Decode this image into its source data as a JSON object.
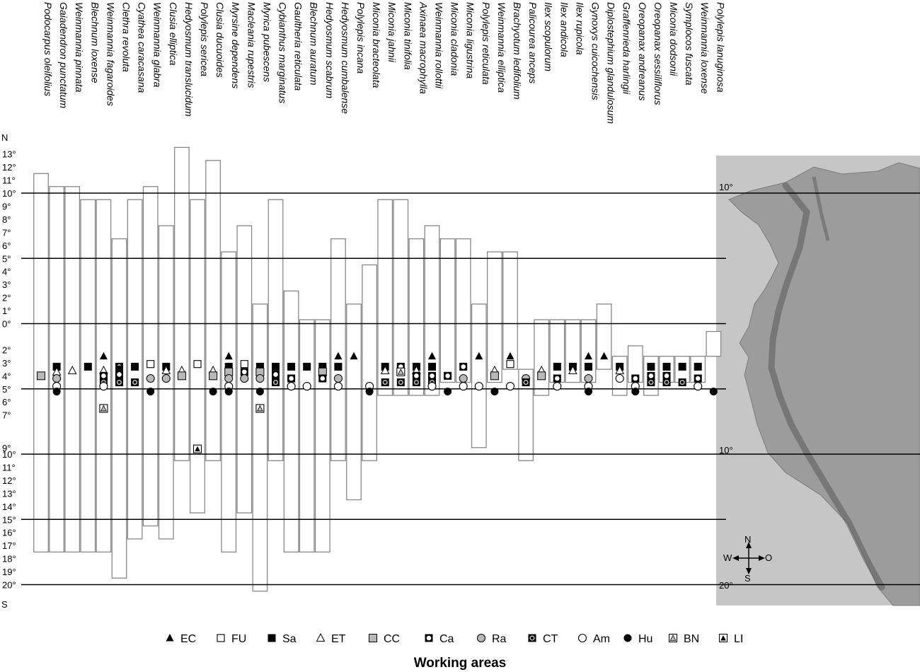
{
  "chart_data": {
    "type": "range-bar",
    "xlabel": "Working areas",
    "ylabel_top": "N",
    "ylabel_bottom": "S",
    "y_ticks_north": [
      "13°",
      "12°",
      "11°",
      "10°",
      "9°",
      "8°",
      "7°",
      "6°",
      "5°",
      "4°",
      "3°",
      "2°",
      "1°",
      "0°"
    ],
    "y_ticks_south": [
      "2°",
      "3°",
      "4°",
      "5°",
      "6°",
      "7°",
      "9°",
      "10°",
      "11°",
      "12°",
      "13°",
      "14°",
      "15°",
      "16°",
      "17°",
      "18°",
      "19°",
      "20°"
    ],
    "reference_lines": [
      10,
      5,
      0,
      -5,
      -10,
      -15,
      -20
    ],
    "ylim": [
      -20.7,
      13.3
    ],
    "species": [
      {
        "name": "Podocarpus oleifolius",
        "range": [
          -17.5,
          11.5
        ],
        "areas": [
          {
            "code": "CC",
            "lat": -4
          }
        ]
      },
      {
        "name": "Gaiadendron punctatum",
        "range": [
          -17.5,
          10.5
        ],
        "areas": [
          {
            "code": "Sa",
            "lat": -3.3
          },
          {
            "code": "ET",
            "lat": -3.7
          },
          {
            "code": "Ra",
            "lat": -4.2
          },
          {
            "code": "Am",
            "lat": -4.8
          },
          {
            "code": "Hu",
            "lat": -5.2
          }
        ]
      },
      {
        "name": "Weinmannia pinnata",
        "range": [
          -17.5,
          10.5
        ],
        "areas": [
          {
            "code": "ET",
            "lat": -3.6
          }
        ]
      },
      {
        "name": "Blechnum loxense",
        "range": [
          -17.5,
          9.5
        ],
        "areas": [
          {
            "code": "Sa",
            "lat": -3.3
          }
        ]
      },
      {
        "name": "Weinmannia fagaroides",
        "range": [
          -17.5,
          9.5
        ],
        "areas": [
          {
            "code": "EC",
            "lat": -2.5
          },
          {
            "code": "ET",
            "lat": -3.6
          },
          {
            "code": "Ca",
            "lat": -4
          },
          {
            "code": "CT",
            "lat": -4.5
          },
          {
            "code": "Am",
            "lat": -4.8
          },
          {
            "code": "BN",
            "lat": -6.5
          }
        ]
      },
      {
        "name": "Clethra revoluta",
        "range": [
          -19.5,
          6.5
        ],
        "areas": [
          {
            "code": "Ca",
            "lat": -3.3
          },
          {
            "code": "Sa",
            "lat": -3.5
          },
          {
            "code": "Ca",
            "lat": -3.9
          },
          {
            "code": "CT",
            "lat": -4.5
          }
        ]
      },
      {
        "name": "Cyathea caracasana",
        "range": [
          -16.5,
          9.5
        ],
        "areas": [
          {
            "code": "Sa",
            "lat": -3.3
          },
          {
            "code": "CT",
            "lat": -4.5
          }
        ]
      },
      {
        "name": "Weinmannia glabra",
        "range": [
          -15.5,
          10.5
        ],
        "areas": [
          {
            "code": "FU",
            "lat": -3.1
          },
          {
            "code": "Ra",
            "lat": -4.2
          },
          {
            "code": "Hu",
            "lat": -5.2
          }
        ]
      },
      {
        "name": "Clusia elliptica",
        "range": [
          -16.5,
          7.5
        ],
        "areas": [
          {
            "code": "Sa",
            "lat": -3.3
          },
          {
            "code": "ET",
            "lat": -3.6
          },
          {
            "code": "Ra",
            "lat": -4.2
          }
        ]
      },
      {
        "name": "Hedyosmum translucidum",
        "range": [
          -10.5,
          13.5
        ],
        "areas": [
          {
            "code": "ET",
            "lat": -3.6
          },
          {
            "code": "CC",
            "lat": -4
          }
        ]
      },
      {
        "name": "Polylepis sericea",
        "range": [
          -14.5,
          9.5
        ],
        "areas": [
          {
            "code": "FU",
            "lat": -3.1
          },
          {
            "code": "LI",
            "lat": -9.6
          }
        ]
      },
      {
        "name": "Clusia ducuoides",
        "range": [
          -10.5,
          12.5
        ],
        "areas": [
          {
            "code": "ET",
            "lat": -3.6
          },
          {
            "code": "CC",
            "lat": -4
          },
          {
            "code": "Hu",
            "lat": -5.2
          }
        ]
      },
      {
        "name": "Myrsine dependens",
        "range": [
          -17.5,
          5.5
        ],
        "areas": [
          {
            "code": "EC",
            "lat": -2.5
          },
          {
            "code": "Sa",
            "lat": -3.3
          },
          {
            "code": "CC",
            "lat": -3.7
          },
          {
            "code": "Ra",
            "lat": -4.2
          },
          {
            "code": "Am",
            "lat": -4.8
          },
          {
            "code": "Hu",
            "lat": -5.2
          }
        ]
      },
      {
        "name": "Macleania rupestris",
        "range": [
          -14.5,
          7.5
        ],
        "areas": [
          {
            "code": "FU",
            "lat": -3.1
          },
          {
            "code": "Ca",
            "lat": -3.7
          },
          {
            "code": "Ra",
            "lat": -4.2
          }
        ]
      },
      {
        "name": "Myrica pubescens",
        "range": [
          -20.5,
          1.5
        ],
        "areas": [
          {
            "code": "Sa",
            "lat": -3.3
          },
          {
            "code": "CC",
            "lat": -3.7
          },
          {
            "code": "Ra",
            "lat": -4.2
          },
          {
            "code": "Hu",
            "lat": -5.2
          },
          {
            "code": "BN",
            "lat": -6.5
          }
        ]
      },
      {
        "name": "Cybianthus marginatus",
        "range": [
          -10.5,
          9.5
        ],
        "areas": [
          {
            "code": "Sa",
            "lat": -3.3
          },
          {
            "code": "Ca",
            "lat": -3.9
          },
          {
            "code": "CT",
            "lat": -4.5
          }
        ]
      },
      {
        "name": "Gaultheria reticulata",
        "range": [
          -17.5,
          2.5
        ],
        "areas": [
          {
            "code": "Sa",
            "lat": -3.3
          },
          {
            "code": "Ca",
            "lat": -4.2
          },
          {
            "code": "Am",
            "lat": -4.8
          }
        ]
      },
      {
        "name": "Blechnum auratum",
        "range": [
          -17.5,
          0.3
        ],
        "areas": [
          {
            "code": "Sa",
            "lat": -3.3
          },
          {
            "code": "Am",
            "lat": -4.8
          }
        ]
      },
      {
        "name": "Hedyosmum scabrum",
        "range": [
          -17.5,
          0.3
        ],
        "areas": [
          {
            "code": "Sa",
            "lat": -3.3
          },
          {
            "code": "CC",
            "lat": -3.7
          },
          {
            "code": "Ca",
            "lat": -4.2
          }
        ]
      },
      {
        "name": "Hedyosmum cumbalense",
        "range": [
          -10.5,
          6.5
        ],
        "areas": [
          {
            "code": "EC",
            "lat": -2.5
          },
          {
            "code": "Sa",
            "lat": -3.3
          },
          {
            "code": "Ra",
            "lat": -4.2
          },
          {
            "code": "Am",
            "lat": -4.8
          }
        ]
      },
      {
        "name": "Polylepis incana",
        "range": [
          -13.5,
          1.5
        ],
        "areas": [
          {
            "code": "EC",
            "lat": -2.5
          }
        ]
      },
      {
        "name": "Miconia bracteolata",
        "range": [
          -10.5,
          4.5
        ],
        "areas": [
          {
            "code": "Am",
            "lat": -4.8
          },
          {
            "code": "Hu",
            "lat": -5.2
          }
        ]
      },
      {
        "name": "Miconia jahnii",
        "range": [
          -5.5,
          9.5
        ],
        "areas": [
          {
            "code": "Sa",
            "lat": -3.3
          },
          {
            "code": "ET",
            "lat": -3.6
          },
          {
            "code": "CT",
            "lat": -4.5
          }
        ]
      },
      {
        "name": "Miconia tinifolia",
        "range": [
          -5.5,
          9.5
        ],
        "areas": [
          {
            "code": "Ca",
            "lat": -3.3
          },
          {
            "code": "BN",
            "lat": -3.7
          },
          {
            "code": "CT",
            "lat": -4.5
          }
        ]
      },
      {
        "name": "Axinaea macrophylla",
        "range": [
          -5.5,
          6.5
        ],
        "areas": [
          {
            "code": "Sa",
            "lat": -3.3
          },
          {
            "code": "ET",
            "lat": -3.6
          },
          {
            "code": "Ca",
            "lat": -4
          },
          {
            "code": "CT",
            "lat": -4.5
          }
        ]
      },
      {
        "name": "Weinmannia rollottii",
        "range": [
          -5.5,
          7.5
        ],
        "areas": [
          {
            "code": "EC",
            "lat": -2.5
          },
          {
            "code": "Sa",
            "lat": -3.3
          },
          {
            "code": "Ca",
            "lat": -4
          },
          {
            "code": "CT",
            "lat": -4.5
          },
          {
            "code": "Am",
            "lat": -4.8
          }
        ]
      },
      {
        "name": "Miconia cladonia",
        "range": [
          -4.5,
          6.5
        ],
        "areas": [
          {
            "code": "Ca",
            "lat": -4
          },
          {
            "code": "Hu",
            "lat": -5.2
          }
        ]
      },
      {
        "name": "Miconia ligustrina",
        "range": [
          -4.5,
          6.5
        ],
        "areas": [
          {
            "code": "Ca",
            "lat": -3.3
          },
          {
            "code": "Ra",
            "lat": -4.2
          },
          {
            "code": "Am",
            "lat": -4.8
          }
        ]
      },
      {
        "name": "Polylepis reticulata",
        "range": [
          -9.5,
          1.5
        ],
        "areas": [
          {
            "code": "EC",
            "lat": -2.5
          },
          {
            "code": "Am",
            "lat": -4.8
          }
        ]
      },
      {
        "name": "Weinmannia elliptica",
        "range": [
          -4.5,
          5.5
        ],
        "areas": [
          {
            "code": "ET",
            "lat": -3.6
          },
          {
            "code": "CC",
            "lat": -4
          },
          {
            "code": "Hu",
            "lat": -5.2
          }
        ]
      },
      {
        "name": "Brachyotum ledifolium",
        "range": [
          -3.5,
          5.5
        ],
        "areas": [
          {
            "code": "EC",
            "lat": -2.5
          },
          {
            "code": "FU",
            "lat": -3.1
          },
          {
            "code": "Am",
            "lat": -4.8
          }
        ]
      },
      {
        "name": "Palicourea anceps",
        "range": [
          -10.5,
          -3.5
        ],
        "areas": [
          {
            "code": "Ra",
            "lat": -4.2
          },
          {
            "code": "CT",
            "lat": -4.5
          }
        ]
      },
      {
        "name": "Ilex scopulorum",
        "range": [
          -5.5,
          0.3
        ],
        "areas": [
          {
            "code": "ET",
            "lat": -3.6
          },
          {
            "code": "CC",
            "lat": -4
          }
        ]
      },
      {
        "name": "Ilex andicola",
        "range": [
          -4.5,
          0.3
        ],
        "areas": [
          {
            "code": "Sa",
            "lat": -3.3
          },
          {
            "code": "Ca",
            "lat": -4.2
          },
          {
            "code": "Am",
            "lat": -4.8
          }
        ]
      },
      {
        "name": "Ilex rupicola",
        "range": [
          -4.5,
          0.3
        ],
        "areas": [
          {
            "code": "Sa",
            "lat": -3.3
          },
          {
            "code": "ET",
            "lat": -3.6
          }
        ]
      },
      {
        "name": "Gynoxys cuicochensis",
        "range": [
          -4.5,
          0.3
        ],
        "areas": [
          {
            "code": "EC",
            "lat": -2.5
          },
          {
            "code": "Sa",
            "lat": -3.3
          },
          {
            "code": "Ra",
            "lat": -4.2
          },
          {
            "code": "Am",
            "lat": -4.8
          },
          {
            "code": "Hu",
            "lat": -5.2
          }
        ]
      },
      {
        "name": "Diplostephium glandulosum",
        "range": [
          -3.5,
          1.5
        ],
        "areas": [
          {
            "code": "EC",
            "lat": -2.5
          }
        ]
      },
      {
        "name": "Graffenrieda harlingii",
        "range": [
          -5.5,
          -2.5
        ],
        "areas": [
          {
            "code": "Sa",
            "lat": -3.3
          },
          {
            "code": "ET",
            "lat": -3.6
          },
          {
            "code": "Am",
            "lat": -4.2
          }
        ]
      },
      {
        "name": "Oreopanax andreanus",
        "range": [
          -4.5,
          -1.7
        ],
        "areas": [
          {
            "code": "Ca",
            "lat": -4.2
          },
          {
            "code": "Am",
            "lat": -4.8
          },
          {
            "code": "Hu",
            "lat": -5.2
          }
        ]
      },
      {
        "name": "Oreopanax sessiliflorus",
        "range": [
          -5.5,
          -2.5
        ],
        "areas": [
          {
            "code": "Sa",
            "lat": -3.3
          },
          {
            "code": "Ca",
            "lat": -4
          },
          {
            "code": "CT",
            "lat": -4.5
          }
        ]
      },
      {
        "name": "Miconia dodsonii",
        "range": [
          -4.5,
          -2.5
        ],
        "areas": [
          {
            "code": "Sa",
            "lat": -3.3
          },
          {
            "code": "Ca",
            "lat": -4
          },
          {
            "code": "CT",
            "lat": -4.5
          }
        ]
      },
      {
        "name": "Symplocos fuscata",
        "range": [
          -4.5,
          -2.5
        ],
        "areas": [
          {
            "code": "Sa",
            "lat": -3.3
          },
          {
            "code": "CT",
            "lat": -4.5
          }
        ]
      },
      {
        "name": "Weinmannia loxense",
        "range": [
          -4.5,
          -2.5
        ],
        "areas": [
          {
            "code": "Sa",
            "lat": -3.3
          },
          {
            "code": "Ca",
            "lat": -4.2
          },
          {
            "code": "Am",
            "lat": -4.8
          }
        ]
      },
      {
        "name": "Polylepis lanuginosa",
        "range": [
          -2.5,
          -0.6
        ],
        "areas": [
          {
            "code": "Hu",
            "lat": -5.2
          }
        ]
      }
    ],
    "legend": [
      {
        "code": "EC",
        "label": "EC"
      },
      {
        "code": "FU",
        "label": "FU"
      },
      {
        "code": "Sa",
        "label": "Sa"
      },
      {
        "code": "ET",
        "label": "ET"
      },
      {
        "code": "CC",
        "label": "CC"
      },
      {
        "code": "Ca",
        "label": "Ca"
      },
      {
        "code": "Ra",
        "label": "Ra"
      },
      {
        "code": "CT",
        "label": "CT"
      },
      {
        "code": "Am",
        "label": "Am"
      },
      {
        "code": "Hu",
        "label": "Hu"
      },
      {
        "code": "BN",
        "label": "BN"
      },
      {
        "code": "LI",
        "label": "LI"
      }
    ],
    "legend_placement": "bottom",
    "inset_map": {
      "lat_labels": [
        "10°",
        "10°",
        "20°"
      ],
      "compass": {
        "n": "N",
        "s": "S",
        "w": "W",
        "o": "O"
      }
    },
    "colors": {
      "bar_stroke": "#888888",
      "line": "#000000",
      "map_bg": "#c8c8c8",
      "fill_gray": "#bbbbbb"
    }
  }
}
